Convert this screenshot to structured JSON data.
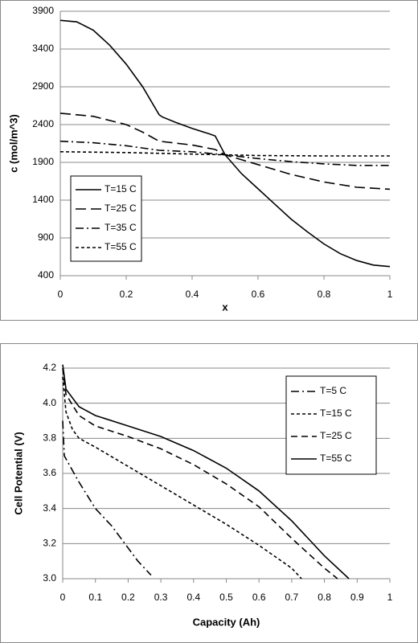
{
  "chart_data": [
    {
      "type": "line",
      "x_label": "x",
      "y_label": "c (mol/m^3)",
      "xlim": [
        0,
        1
      ],
      "xticks": [
        0,
        0.2,
        0.4,
        0.6,
        0.8,
        1
      ],
      "ylim": [
        400,
        3900
      ],
      "yticks": [
        400,
        900,
        1400,
        1900,
        2400,
        2900,
        3400,
        3900
      ],
      "grid": true,
      "legend": "lower left",
      "series": [
        {
          "name": "T=15 C",
          "color": "#000000",
          "dash": "solid",
          "x": [
            0,
            0.05,
            0.1,
            0.15,
            0.2,
            0.25,
            0.3,
            0.31,
            0.35,
            0.4,
            0.45,
            0.47,
            0.5,
            0.55,
            0.6,
            0.65,
            0.7,
            0.75,
            0.8,
            0.85,
            0.9,
            0.95,
            1
          ],
          "values": [
            3780,
            3760,
            3650,
            3450,
            3200,
            2900,
            2530,
            2500,
            2430,
            2350,
            2280,
            2250,
            2000,
            1750,
            1550,
            1350,
            1150,
            980,
            820,
            690,
            600,
            540,
            520
          ]
        },
        {
          "name": "T=25 C",
          "color": "#000000",
          "dash": "long",
          "x": [
            0,
            0.1,
            0.2,
            0.25,
            0.3,
            0.4,
            0.47,
            0.5,
            0.6,
            0.7,
            0.8,
            0.9,
            1
          ],
          "values": [
            2550,
            2510,
            2400,
            2300,
            2180,
            2130,
            2070,
            2000,
            1870,
            1740,
            1640,
            1570,
            1545
          ]
        },
        {
          "name": "T=35 C",
          "color": "#000000",
          "dash": "dashdot",
          "x": [
            0,
            0.1,
            0.2,
            0.3,
            0.4,
            0.5,
            0.6,
            0.7,
            0.8,
            0.9,
            1
          ],
          "values": [
            2180,
            2160,
            2120,
            2060,
            2040,
            2000,
            1950,
            1910,
            1880,
            1860,
            1860
          ]
        },
        {
          "name": "T=55 C",
          "color": "#000000",
          "dash": "short",
          "x": [
            0,
            0.2,
            0.4,
            0.5,
            0.6,
            0.8,
            1
          ],
          "values": [
            2040,
            2030,
            2010,
            2000,
            1990,
            1985,
            1985
          ]
        }
      ]
    },
    {
      "type": "line",
      "x_label": "Capacity (Ah)",
      "y_label": "Cell Potential (V)",
      "xlim": [
        0,
        1
      ],
      "xticks": [
        0,
        0.1,
        0.2,
        0.3,
        0.4,
        0.5,
        0.6,
        0.7,
        0.8,
        0.9,
        1
      ],
      "ylim": [
        3,
        4.2
      ],
      "yticks": [
        {
          "value": 3,
          "label": "3.0"
        },
        3.2,
        3.4,
        3.6,
        3.8,
        {
          "value": 4,
          "label": "4.0"
        },
        4.2
      ],
      "grid": true,
      "legend": "upper right",
      "series": [
        {
          "name": "T=5 C",
          "color": "#000000",
          "dash": "dashdot",
          "x": [
            0,
            0.005,
            0.05,
            0.1,
            0.15,
            0.19,
            0.23,
            0.27
          ],
          "values": [
            3.9,
            3.7,
            3.55,
            3.4,
            3.3,
            3.2,
            3.1,
            3.02
          ]
        },
        {
          "name": "T=15 C",
          "color": "#000000",
          "dash": "short",
          "x": [
            0,
            0.01,
            0.03,
            0.05,
            0.1,
            0.2,
            0.3,
            0.4,
            0.5,
            0.6,
            0.7,
            0.73
          ],
          "values": [
            4.15,
            3.95,
            3.85,
            3.8,
            3.75,
            3.64,
            3.53,
            3.42,
            3.31,
            3.19,
            3.06,
            3
          ]
        },
        {
          "name": "T=25 C",
          "color": "#000000",
          "dash": "medium",
          "x": [
            0,
            0.01,
            0.05,
            0.1,
            0.2,
            0.3,
            0.4,
            0.5,
            0.6,
            0.7,
            0.8,
            0.84
          ],
          "values": [
            4.2,
            4.05,
            3.93,
            3.87,
            3.81,
            3.74,
            3.65,
            3.54,
            3.41,
            3.23,
            3.06,
            3
          ]
        },
        {
          "name": "T=55 C",
          "color": "#000000",
          "dash": "solid",
          "x": [
            0,
            0.01,
            0.05,
            0.1,
            0.2,
            0.3,
            0.4,
            0.5,
            0.6,
            0.7,
            0.8,
            0.875
          ],
          "values": [
            4.22,
            4.08,
            3.98,
            3.93,
            3.87,
            3.81,
            3.73,
            3.63,
            3.5,
            3.33,
            3.13,
            3
          ]
        }
      ]
    }
  ]
}
